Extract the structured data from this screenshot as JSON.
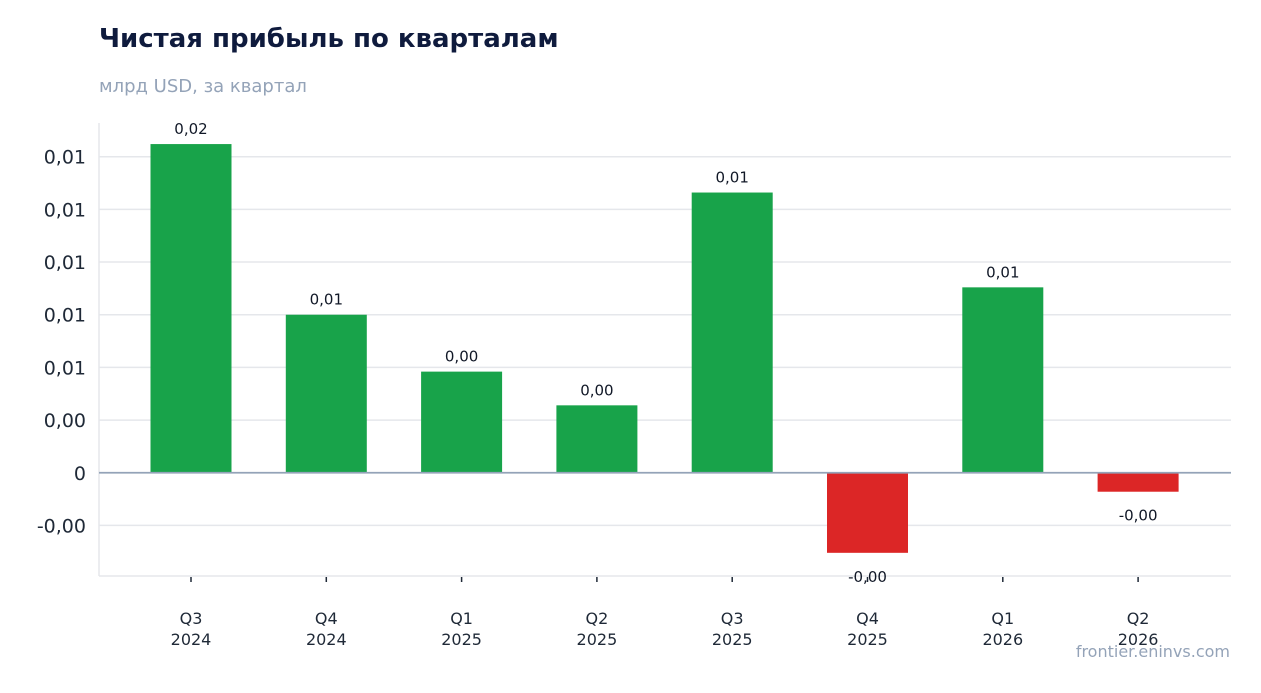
{
  "chart_data": {
    "type": "bar",
    "title": "Чистая прибыль по кварталам",
    "subtitle": "млрд USD, за квартал",
    "xlabel": "",
    "ylabel": "",
    "categories": [
      [
        "Q3",
        "2024"
      ],
      [
        "Q4",
        "2024"
      ],
      [
        "Q1",
        "2025"
      ],
      [
        "Q2",
        "2025"
      ],
      [
        "Q3",
        "2025"
      ],
      [
        "Q4",
        "2025"
      ],
      [
        "Q1",
        "2026"
      ],
      [
        "Q2",
        "2026"
      ]
    ],
    "series": [
      {
        "values": [
          0.0156,
          0.0075,
          0.0048,
          0.0032,
          0.0133,
          -0.0038,
          0.0088,
          -0.0009
        ],
        "data_labels": [
          "0,02",
          "0,01",
          "0,00",
          "0,00",
          "0,01",
          "-0,00",
          "0,01",
          "-0,00"
        ]
      }
    ],
    "yticks": [
      {
        "value": -0.0025,
        "label": "-0,00"
      },
      {
        "value": 0,
        "label": "0"
      },
      {
        "value": 0.0025,
        "label": "0,00"
      },
      {
        "value": 0.005,
        "label": "0,01"
      },
      {
        "value": 0.0075,
        "label": "0,01"
      },
      {
        "value": 0.01,
        "label": "0,01"
      },
      {
        "value": 0.0125,
        "label": "0,01"
      },
      {
        "value": 0.015,
        "label": "0,01"
      }
    ],
    "ylim": [
      -0.0049,
      0.0166
    ],
    "grid": true,
    "legend": "none",
    "colors": {
      "positive": "#18a34a",
      "negative": "#dc2626",
      "grid": "#e5e7eb",
      "zero_line": "#94a3b8"
    }
  },
  "watermark": "frontier.eninvs.com"
}
